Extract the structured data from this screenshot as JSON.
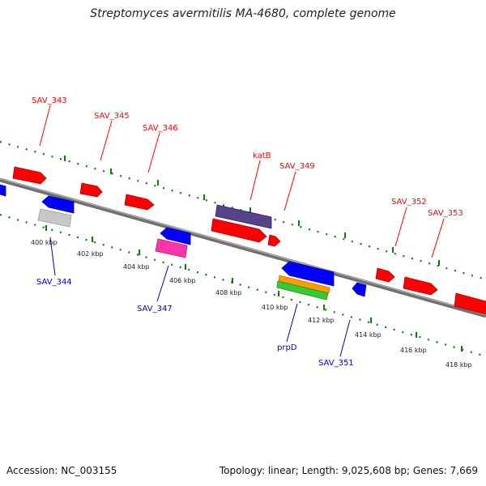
{
  "title": "Streptomyces avermitilis MA-4680, complete genome",
  "footer": {
    "accession": "Accession: NC_003155",
    "info": "Topology: linear; Length: 9,025,608 bp; Genes: 7,669"
  },
  "colors": {
    "forward": "#ff0000",
    "reverse": "#0000ff",
    "backbone": "#808080",
    "ticks": "#0a7d0a",
    "gray_gene": "#c8c8c8",
    "pink_gene": "#ff33aa",
    "purple_gene": "#55448a",
    "orange_gene": "#ff9900",
    "green_gene": "#33cc33"
  },
  "ticks": [
    "400 kbp",
    "402 kbp",
    "404 kbp",
    "406 kbp",
    "408 kbp",
    "410 kbp",
    "412 kbp",
    "414 kbp",
    "416 kbp",
    "418 kbp"
  ],
  "gene_labels": {
    "top": [
      "SAV_343",
      "SAV_345",
      "SAV_346",
      "katB",
      "SAV_349",
      "SAV_352",
      "SAV_353"
    ],
    "bottom": [
      "SAV_344",
      "SAV_347",
      "prpD",
      "SAV_351"
    ]
  }
}
